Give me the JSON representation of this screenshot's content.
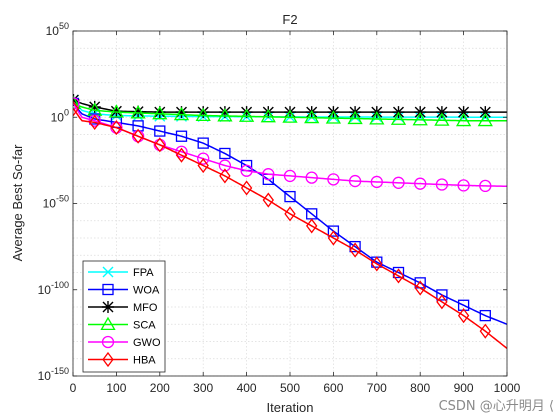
{
  "watermark": "CSDN @心升明月 ⟨",
  "chart_data": {
    "type": "line",
    "title": "F2",
    "xlabel": "Iteration",
    "ylabel": "Average Best So-far",
    "y_scale": "log",
    "xlim": [
      0,
      1000
    ],
    "ylim_exponent": [
      -150,
      50
    ],
    "xticks": [
      0,
      100,
      200,
      300,
      400,
      500,
      600,
      700,
      800,
      900,
      1000
    ],
    "yticks_exponent": [
      50,
      0,
      -50,
      -100,
      -150
    ],
    "ytick_base": "10",
    "grid": true,
    "legend_position": "bottom-left",
    "marker_every": 50,
    "series": [
      {
        "name": "FPA",
        "color": "#00FFFF",
        "marker": "x",
        "x": [
          1,
          20,
          50,
          100,
          200,
          300,
          500,
          700,
          1000
        ],
        "log10_values": [
          10,
          4,
          2,
          1,
          0.6,
          0.4,
          0.2,
          0.1,
          0
        ]
      },
      {
        "name": "WOA",
        "color": "#0000FF",
        "marker": "square",
        "x": [
          1,
          20,
          50,
          100,
          150,
          200,
          250,
          300,
          350,
          400,
          450,
          500,
          550,
          600,
          650,
          700,
          750,
          800,
          850,
          900,
          950,
          1000
        ],
        "log10_values": [
          8,
          2,
          -1,
          -3,
          -5,
          -8,
          -11,
          -15,
          -21,
          -28,
          -36,
          -46,
          -56,
          -66,
          -75,
          -84,
          -90,
          -96,
          -103,
          -109,
          -115,
          -120
        ]
      },
      {
        "name": "MFO",
        "color": "#000000",
        "marker": "asterisk",
        "x": [
          1,
          20,
          50,
          100,
          200,
          300,
          500,
          700,
          1000
        ],
        "log10_values": [
          10,
          8,
          6,
          3.5,
          3,
          3,
          3,
          3,
          3
        ]
      },
      {
        "name": "SCA",
        "color": "#00FF00",
        "marker": "triangle",
        "x": [
          1,
          20,
          50,
          100,
          150,
          200,
          300,
          500,
          700,
          800,
          900,
          1000
        ],
        "log10_values": [
          8,
          6,
          4,
          3,
          2.5,
          2,
          1,
          0,
          -1,
          -1.5,
          -2,
          -2
        ]
      },
      {
        "name": "GWO",
        "color": "#FF00FF",
        "marker": "circle",
        "x": [
          1,
          20,
          50,
          100,
          150,
          200,
          250,
          300,
          350,
          400,
          450,
          500,
          550,
          600,
          650,
          700,
          750,
          800,
          850,
          900,
          950,
          1000
        ],
        "log10_values": [
          8,
          0,
          -2,
          -6,
          -11,
          -16,
          -20,
          -24,
          -28,
          -31,
          -33,
          -34,
          -35,
          -36,
          -37,
          -37.5,
          -38,
          -38.5,
          -39,
          -39.5,
          -39.8,
          -40
        ]
      },
      {
        "name": "HBA",
        "color": "#FF0000",
        "marker": "diamond",
        "x": [
          1,
          20,
          50,
          100,
          150,
          200,
          250,
          300,
          350,
          400,
          450,
          500,
          550,
          600,
          650,
          700,
          750,
          800,
          850,
          900,
          950,
          1000
        ],
        "log10_values": [
          5,
          -2,
          -3,
          -6,
          -11,
          -16,
          -22,
          -28,
          -34,
          -41,
          -48,
          -56,
          -63,
          -70,
          -77,
          -85,
          -92,
          -99,
          -107,
          -115,
          -124,
          -134
        ]
      }
    ]
  }
}
